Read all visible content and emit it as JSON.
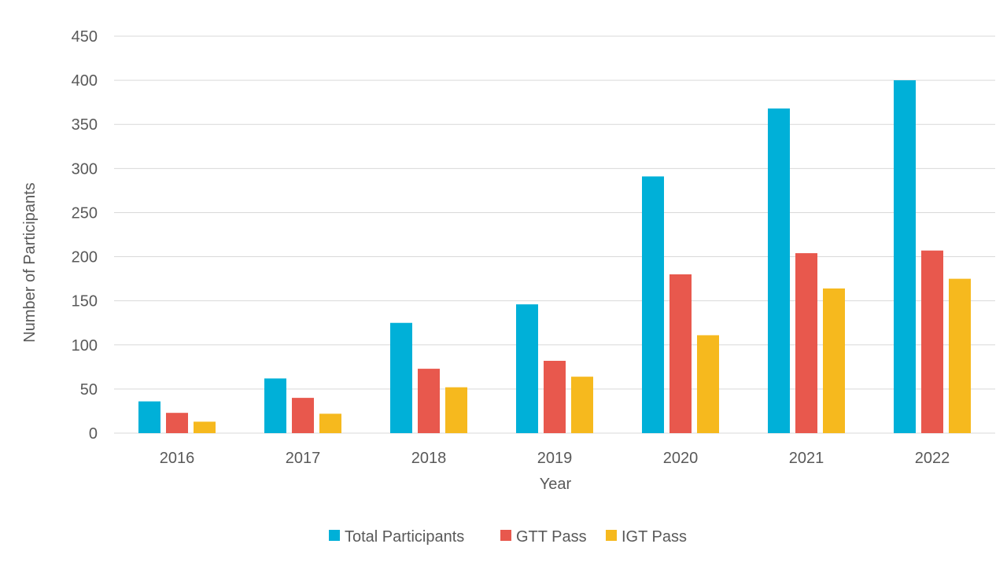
{
  "chart_data": {
    "type": "bar",
    "title": "",
    "xlabel": "Year",
    "ylabel": "Number of Participants",
    "categories": [
      "2016",
      "2017",
      "2018",
      "2019",
      "2020",
      "2021",
      "2022"
    ],
    "ylim": [
      0,
      450
    ],
    "yticks": [
      0,
      50,
      100,
      150,
      200,
      250,
      300,
      350,
      400,
      450
    ],
    "grid": true,
    "legend_position": "bottom",
    "series": [
      {
        "name": "Total Participants",
        "color": "#00b0d8",
        "values": [
          36,
          62,
          125,
          146,
          291,
          368,
          400
        ]
      },
      {
        "name": "GTT Pass",
        "color": "#e8584d",
        "values": [
          23,
          40,
          73,
          82,
          180,
          204,
          207
        ]
      },
      {
        "name": "IGT Pass",
        "color": "#f6b91e",
        "values": [
          13,
          22,
          52,
          64,
          111,
          164,
          175
        ]
      }
    ]
  }
}
